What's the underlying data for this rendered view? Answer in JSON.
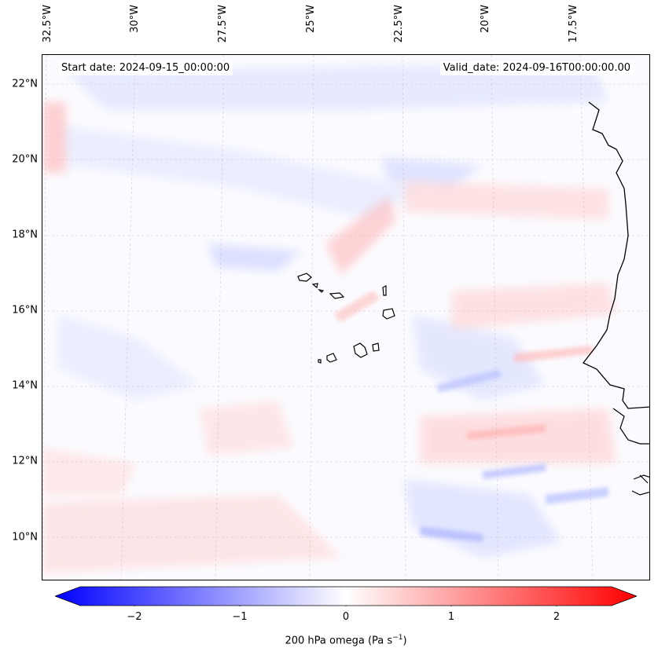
{
  "map": {
    "start_date": "Start date: 2024-09-15_00:00:00",
    "valid_date": "Valid_date: 2024-09-16T00:00:00.00",
    "lat_labels": [
      "22°N",
      "20°N",
      "18°N",
      "16°N",
      "14°N",
      "12°N",
      "10°N"
    ],
    "lon_labels": [
      "32.5°W",
      "30°W",
      "27.5°W",
      "25°W",
      "22.5°W",
      "20°W",
      "17.5°W"
    ],
    "field": "200 hPa omega",
    "colors": {
      "negative": "#0000ff",
      "positive": "#ff0000",
      "neutral": "#ffffff",
      "coast": "#000000"
    }
  },
  "colorbar": {
    "ticks": [
      "−2",
      "−1",
      "0",
      "1",
      "2"
    ],
    "label": "200 hPa omega (Pa s",
    "label_sup": "−1",
    "label_end": ")"
  }
}
